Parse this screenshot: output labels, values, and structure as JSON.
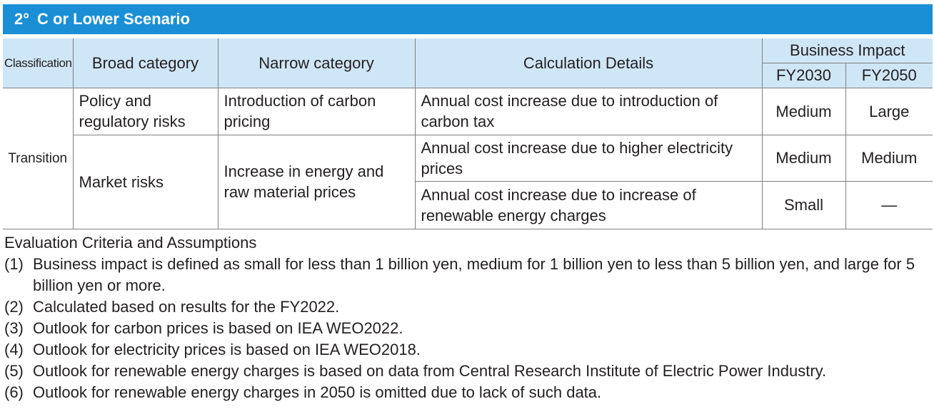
{
  "banner": {
    "title": "2° C or Lower Scenario"
  },
  "table": {
    "headers": {
      "classification": "Classification",
      "broad": "Broad category",
      "narrow": "Narrow category",
      "details": "Calculation Details",
      "impact": "Business Impact",
      "fy2030": "FY2030",
      "fy2050": "FY2050"
    },
    "classification": "Transition",
    "rows": [
      {
        "broad": "Policy and regulatory risks",
        "narrow": "Introduction of carbon pricing",
        "details": "Annual cost increase due to introduction of carbon tax",
        "fy2030": "Medium",
        "fy2050": "Large"
      },
      {
        "broad": "Market risks",
        "narrow": "Increase in energy and raw material prices",
        "details": "Annual cost increase due to higher electricity prices",
        "fy2030": "Medium",
        "fy2050": "Medium"
      },
      {
        "details": "Annual cost increase due to increase of renewable energy charges",
        "fy2030": "Small",
        "fy2050": "—"
      }
    ]
  },
  "notes": {
    "title": "Evaluation Criteria and Assumptions",
    "items": [
      {
        "num": "(1)",
        "text": "Business impact is defined as small for less than 1 billion yen, medium for 1 billion yen to less than 5 billion yen, and large for 5 billion yen or more."
      },
      {
        "num": "(2)",
        "text": "Calculated based on results for the FY2022."
      },
      {
        "num": "(3)",
        "text": "Outlook for carbon prices is based on IEA WEO2022."
      },
      {
        "num": "(4)",
        "text": "Outlook for electricity prices is based on IEA WEO2018."
      },
      {
        "num": "(5)",
        "text": "Outlook for renewable energy charges is based on data from Central Research Institute of Electric Power Industry."
      },
      {
        "num": "(6)",
        "text": "Outlook for renewable energy charges in 2050 is omitted due to lack of such data."
      }
    ]
  }
}
